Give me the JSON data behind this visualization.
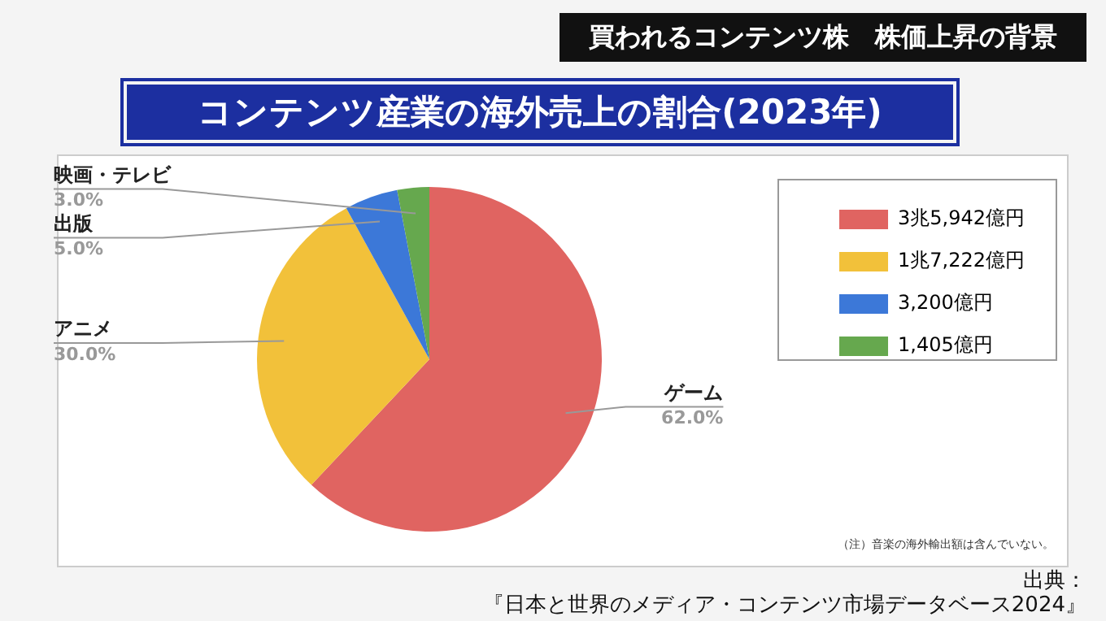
{
  "chart_data": {
    "type": "pie",
    "subtitle": "買われるコンテンツ株　株価上昇の背景",
    "title": "コンテンツ産業の海外売上の割合(2023年)",
    "categories": [
      "3兆5,942億円",
      "1兆7,222億円",
      "3,200億円",
      "1,405億円"
    ],
    "values": [
      62,
      30,
      5,
      3
    ],
    "value_labels": [
      "ゲーム\n62.0%",
      "アニメ\n30.0%",
      "出版\n5.0%",
      "映画・テレビ\n3.0%"
    ],
    "colors": [
      "#e06461",
      "#f2c13a",
      "#3c78d8",
      "#66a84e"
    ],
    "legend": "right",
    "annotations": [
      "（注）音楽の海外輸出額は含んでいない。",
      "出典：『日本と世界のメディア・コンテンツ市場データベース2024』"
    ]
  }
}
